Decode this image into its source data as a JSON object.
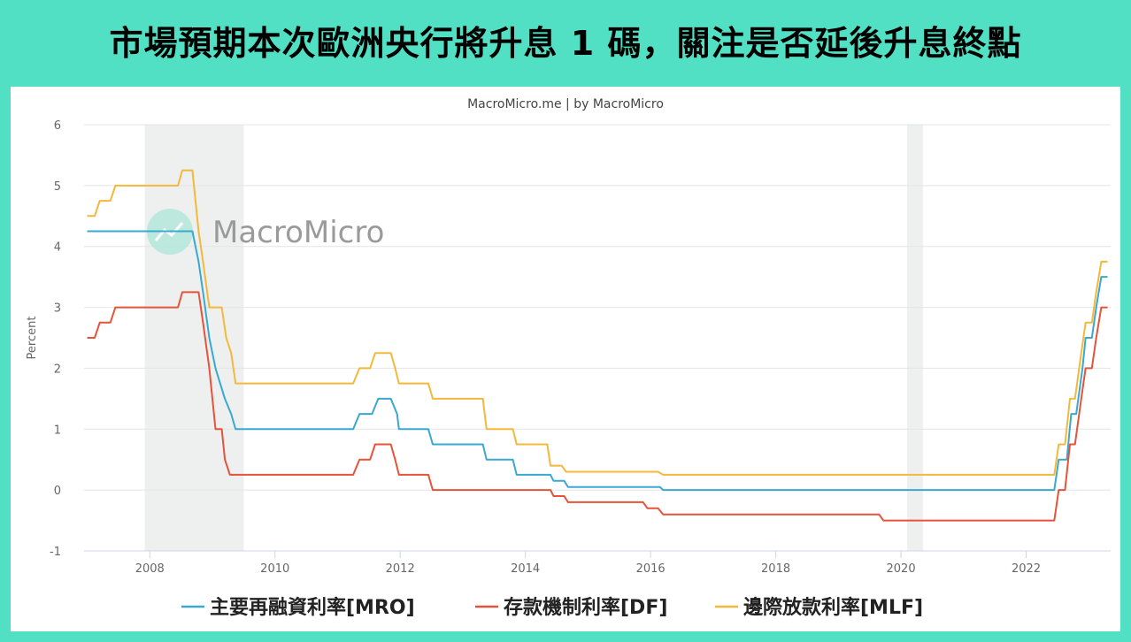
{
  "headline": "市場預期本次歐洲央行將升息 1 碼，關注是否延後升息終點",
  "credit": "MacroMicro.me | by MacroMicro",
  "watermark": "MacroMicro",
  "chart_data": {
    "type": "line",
    "title": "",
    "xlabel": "",
    "ylabel": "Percent",
    "xlim": [
      2006.95,
      2023.35
    ],
    "ylim": [
      -1,
      6
    ],
    "yticks": [
      -1,
      0,
      1,
      2,
      3,
      4,
      5,
      6
    ],
    "xticks": [
      2008,
      2010,
      2012,
      2014,
      2016,
      2018,
      2020,
      2022
    ],
    "grid": "horizontal",
    "legend_position": "bottom",
    "shaded_periods": [
      [
        2007.92,
        2009.5
      ],
      [
        2020.1,
        2020.35
      ]
    ],
    "series": [
      {
        "name": "主要再融資利率[MRO]",
        "color": "#3aa8d0",
        "points": [
          [
            2007.0,
            4.25
          ],
          [
            2008.68,
            4.25
          ],
          [
            2008.78,
            3.75
          ],
          [
            2008.85,
            3.25
          ],
          [
            2008.95,
            2.5
          ],
          [
            2009.05,
            2.0
          ],
          [
            2009.2,
            1.5
          ],
          [
            2009.3,
            1.25
          ],
          [
            2009.37,
            1.0
          ],
          [
            2011.25,
            1.0
          ],
          [
            2011.35,
            1.25
          ],
          [
            2011.55,
            1.25
          ],
          [
            2011.65,
            1.5
          ],
          [
            2011.85,
            1.5
          ],
          [
            2011.95,
            1.25
          ],
          [
            2011.98,
            1.0
          ],
          [
            2012.45,
            1.0
          ],
          [
            2012.52,
            0.75
          ],
          [
            2013.32,
            0.75
          ],
          [
            2013.38,
            0.5
          ],
          [
            2013.8,
            0.5
          ],
          [
            2013.86,
            0.25
          ],
          [
            2014.4,
            0.25
          ],
          [
            2014.45,
            0.15
          ],
          [
            2014.62,
            0.15
          ],
          [
            2014.68,
            0.05
          ],
          [
            2016.15,
            0.05
          ],
          [
            2016.2,
            0.0
          ],
          [
            2022.45,
            0.0
          ],
          [
            2022.52,
            0.5
          ],
          [
            2022.65,
            0.5
          ],
          [
            2022.72,
            1.25
          ],
          [
            2022.8,
            1.25
          ],
          [
            2022.9,
            2.0
          ],
          [
            2022.95,
            2.5
          ],
          [
            2023.05,
            2.5
          ],
          [
            2023.12,
            3.0
          ],
          [
            2023.2,
            3.5
          ],
          [
            2023.3,
            3.5
          ]
        ]
      },
      {
        "name": "存款機制利率[DF]",
        "color": "#e4533a",
        "points": [
          [
            2007.0,
            2.5
          ],
          [
            2007.12,
            2.5
          ],
          [
            2007.2,
            2.75
          ],
          [
            2007.37,
            2.75
          ],
          [
            2007.45,
            3.0
          ],
          [
            2008.45,
            3.0
          ],
          [
            2008.52,
            3.25
          ],
          [
            2008.78,
            3.25
          ],
          [
            2008.85,
            2.75
          ],
          [
            2008.95,
            2.0
          ],
          [
            2009.05,
            1.0
          ],
          [
            2009.15,
            1.0
          ],
          [
            2009.2,
            0.5
          ],
          [
            2009.28,
            0.25
          ],
          [
            2011.25,
            0.25
          ],
          [
            2011.35,
            0.5
          ],
          [
            2011.52,
            0.5
          ],
          [
            2011.6,
            0.75
          ],
          [
            2011.85,
            0.75
          ],
          [
            2011.92,
            0.5
          ],
          [
            2011.98,
            0.25
          ],
          [
            2012.45,
            0.25
          ],
          [
            2012.52,
            0.0
          ],
          [
            2014.4,
            0.0
          ],
          [
            2014.45,
            -0.1
          ],
          [
            2014.62,
            -0.1
          ],
          [
            2014.68,
            -0.2
          ],
          [
            2015.88,
            -0.2
          ],
          [
            2015.95,
            -0.3
          ],
          [
            2016.12,
            -0.3
          ],
          [
            2016.2,
            -0.4
          ],
          [
            2019.65,
            -0.4
          ],
          [
            2019.72,
            -0.5
          ],
          [
            2022.45,
            -0.5
          ],
          [
            2022.52,
            0.0
          ],
          [
            2022.62,
            0.0
          ],
          [
            2022.7,
            0.75
          ],
          [
            2022.78,
            0.75
          ],
          [
            2022.88,
            1.5
          ],
          [
            2022.95,
            2.0
          ],
          [
            2023.05,
            2.0
          ],
          [
            2023.12,
            2.5
          ],
          [
            2023.2,
            3.0
          ],
          [
            2023.3,
            3.0
          ]
        ]
      },
      {
        "name": "邊際放款利率[MLF]",
        "color": "#f4b83a",
        "points": [
          [
            2007.0,
            4.5
          ],
          [
            2007.12,
            4.5
          ],
          [
            2007.2,
            4.75
          ],
          [
            2007.37,
            4.75
          ],
          [
            2007.45,
            5.0
          ],
          [
            2008.45,
            5.0
          ],
          [
            2008.52,
            5.25
          ],
          [
            2008.68,
            5.25
          ],
          [
            2008.78,
            4.25
          ],
          [
            2008.85,
            3.75
          ],
          [
            2008.95,
            3.0
          ],
          [
            2009.15,
            3.0
          ],
          [
            2009.22,
            2.5
          ],
          [
            2009.3,
            2.25
          ],
          [
            2009.37,
            1.75
          ],
          [
            2011.25,
            1.75
          ],
          [
            2011.35,
            2.0
          ],
          [
            2011.52,
            2.0
          ],
          [
            2011.6,
            2.25
          ],
          [
            2011.85,
            2.25
          ],
          [
            2011.92,
            2.0
          ],
          [
            2011.98,
            1.75
          ],
          [
            2012.45,
            1.75
          ],
          [
            2012.52,
            1.5
          ],
          [
            2013.32,
            1.5
          ],
          [
            2013.38,
            1.0
          ],
          [
            2013.8,
            1.0
          ],
          [
            2013.86,
            0.75
          ],
          [
            2014.35,
            0.75
          ],
          [
            2014.4,
            0.4
          ],
          [
            2014.58,
            0.4
          ],
          [
            2014.65,
            0.3
          ],
          [
            2016.12,
            0.3
          ],
          [
            2016.2,
            0.25
          ],
          [
            2022.45,
            0.25
          ],
          [
            2022.52,
            0.75
          ],
          [
            2022.62,
            0.75
          ],
          [
            2022.7,
            1.5
          ],
          [
            2022.78,
            1.5
          ],
          [
            2022.88,
            2.25
          ],
          [
            2022.95,
            2.75
          ],
          [
            2023.05,
            2.75
          ],
          [
            2023.12,
            3.25
          ],
          [
            2023.2,
            3.75
          ],
          [
            2023.3,
            3.75
          ]
        ]
      }
    ]
  }
}
